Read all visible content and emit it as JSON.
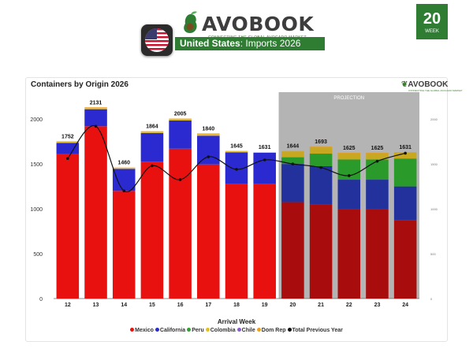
{
  "header": {
    "brand_name": "AVOBOOK",
    "brand_tagline": "CONNECTING THE GLOBAL AVOCADO MARKET",
    "country": "United States",
    "separator": ":",
    "subtitle": "Imports 2026",
    "week_number": "20",
    "week_label": "WEEK"
  },
  "chart_data": {
    "type": "bar",
    "stacked": true,
    "title": "Containers by Origin 2026",
    "xlabel": "Arrival Week",
    "ylabel": "",
    "categories": [
      "12",
      "13",
      "14",
      "15",
      "16",
      "17",
      "18",
      "19",
      "20",
      "21",
      "22",
      "23",
      "24"
    ],
    "ylim": [
      0,
      2300
    ],
    "yticks": [
      0,
      500,
      1000,
      1500,
      2000
    ],
    "yticks_right": [
      0,
      500,
      1000,
      1500,
      2000
    ],
    "grid": false,
    "legend_position": "bottom",
    "projection_label": "PROJECTION",
    "projection_categories": [
      "20",
      "21",
      "22",
      "23",
      "24"
    ],
    "totals": [
      1752,
      2131,
      1460,
      1864,
      2005,
      1840,
      1645,
      1631,
      1644,
      1693,
      1625,
      1625,
      1631
    ],
    "series": [
      {
        "name": "Mexico",
        "color": "#e8110f",
        "projection_color": "#a80c0c",
        "values": [
          1610,
          1920,
          1200,
          1525,
          1670,
          1495,
          1275,
          1275,
          1075,
          1050,
          1000,
          1000,
          875
        ]
      },
      {
        "name": "California",
        "color": "#2a2ad0",
        "projection_color": "#22319c",
        "values": [
          125,
          190,
          245,
          320,
          315,
          320,
          355,
          350,
          425,
          425,
          325,
          325,
          375
        ]
      },
      {
        "name": "Peru",
        "color": "#2fa22f",
        "projection_color": "#2a9a2a",
        "values": [
          0,
          0,
          0,
          0,
          0,
          0,
          0,
          0,
          75,
          140,
          225,
          225,
          310
        ]
      },
      {
        "name": "Colombia",
        "color": "#e2c21c",
        "projection_color": "#c8a821",
        "values": [
          10,
          12,
          10,
          12,
          12,
          15,
          10,
          5,
          65,
          70,
          65,
          65,
          65
        ]
      },
      {
        "name": "Chile",
        "color": "#8a5bd0",
        "projection_color": "#8a5bd0",
        "values": [
          0,
          0,
          0,
          0,
          0,
          0,
          0,
          0,
          0,
          0,
          0,
          0,
          0
        ]
      },
      {
        "name": "Dom Rep",
        "color": "#f0a020",
        "projection_color": "#d9a02a",
        "values": [
          7,
          9,
          5,
          7,
          8,
          10,
          5,
          1,
          4,
          8,
          10,
          10,
          6
        ]
      }
    ],
    "line_series": {
      "name": "Total Previous Year",
      "color": "#111111",
      "values": [
        1560,
        1920,
        1200,
        1480,
        1325,
        1580,
        1440,
        1545,
        1500,
        1460,
        1370,
        1530,
        1620
      ]
    }
  }
}
